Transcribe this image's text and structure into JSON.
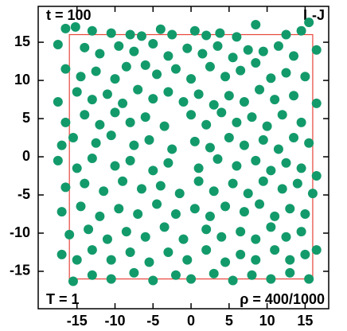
{
  "chart_data": {
    "type": "scatter",
    "annotations": [
      "t = 100",
      "L-J",
      "T = 1",
      "ρ = 400/1000"
    ],
    "color": "#139a6b",
    "box_color": "#e8453c",
    "box_lim": [
      -16,
      16
    ],
    "xlim": [
      -20.1,
      18.1
    ],
    "ylim": [
      -19.9,
      19.7
    ],
    "xticks": [
      -15,
      -10,
      -5,
      0,
      5,
      10,
      15
    ],
    "yticks": [
      -15,
      -10,
      -5,
      0,
      5,
      10,
      15
    ],
    "x": [
      -16.5,
      -15.2,
      -13,
      -10.5,
      -8,
      -6.5,
      -4,
      -2.5,
      0.5,
      2,
      3.8,
      6,
      8.5,
      12.5,
      14.5,
      15.5,
      -17.5,
      -14,
      -12,
      -9.5,
      -7.5,
      -5,
      -3,
      -0.5,
      1.5,
      3.5,
      5.5,
      7.5,
      9.5,
      11.5,
      13.5,
      16.5,
      -16.5,
      -14.5,
      -12.5,
      -10,
      -8.5,
      -6,
      -4.5,
      -2,
      0,
      2.5,
      4.5,
      6.5,
      8.5,
      10.5,
      12.5,
      15,
      -17.5,
      -15,
      -13,
      -11,
      -9,
      -7,
      -5,
      -3,
      -1,
      1,
      3,
      5,
      7,
      9,
      11,
      13.5,
      16.5,
      -16.5,
      -14,
      -12,
      -10,
      -8,
      -6,
      -3.5,
      0,
      2,
      4,
      6,
      8,
      10,
      12,
      14.5,
      -17,
      -15.5,
      -12.5,
      -10.5,
      -7.5,
      -5.5,
      -2.5,
      0.5,
      2.5,
      5,
      7,
      9.5,
      11.5,
      13.5,
      15.5,
      -17.5,
      -15,
      -13,
      -10,
      -8,
      -5,
      -3,
      1,
      3.5,
      6,
      8.5,
      10.5,
      12.5,
      14.5,
      16.5,
      -16.5,
      -14,
      -11.5,
      -9,
      -6.5,
      -4,
      -1.5,
      1,
      3,
      5.5,
      7.5,
      9.5,
      12,
      14,
      16,
      -17,
      -14.5,
      -12,
      -9.5,
      -7,
      -4.5,
      -2,
      0.5,
      2.5,
      4.5,
      7,
      9,
      11,
      13,
      15,
      -16,
      -13.5,
      -11,
      -8.5,
      -6,
      -3.5,
      -1,
      2,
      4,
      6.5,
      8.5,
      10.5,
      12.5,
      14.5,
      16.5,
      -17,
      -15,
      -13,
      -10.5,
      -8,
      -5.5,
      -3,
      -0.5,
      2,
      4.5,
      6.5,
      8.5,
      11,
      13,
      15,
      -15.5,
      -13,
      -10.5,
      -7.5,
      -5,
      -2,
      0,
      3,
      5.5,
      8,
      10.5,
      13,
      15.5
    ],
    "values": [
      16.8,
      17,
      16.5,
      16.2,
      16,
      15.8,
      16.7,
      16,
      16.5,
      15.9,
      16.2,
      15.7,
      17.3,
      16,
      16.5,
      17.6,
      14.7,
      14.3,
      13.5,
      14.5,
      13.8,
      14.8,
      13.2,
      14.2,
      13.5,
      14.5,
      13,
      14,
      13.8,
      14.5,
      13.2,
      14,
      11.5,
      10.5,
      11.2,
      10.2,
      11.8,
      12,
      10.8,
      11.5,
      10.2,
      11.8,
      10.5,
      11.3,
      12.3,
      10.3,
      11,
      10.5,
      7.2,
      8.5,
      7.5,
      8.2,
      7,
      8.8,
      7.6,
      8.5,
      7.2,
      8.2,
      6.8,
      8,
      7.2,
      8.8,
      7.5,
      8,
      7,
      4.5,
      5.5,
      4.2,
      5.8,
      4.5,
      5.2,
      4,
      5.5,
      4.2,
      5.8,
      4.5,
      5.2,
      4,
      5.5,
      4.5,
      1.5,
      2.5,
      1.8,
      2.8,
      1.5,
      2.2,
      1,
      2,
      1.2,
      2.5,
      1.5,
      2.2,
      1,
      2.5,
      1.8,
      -0.5,
      -1.5,
      -0.2,
      -1.2,
      -0.5,
      -1.8,
      -0.8,
      -1.5,
      -0.3,
      -1.2,
      -0.5,
      -1.8,
      -0.8,
      -1.5,
      -2.5,
      -4,
      -3.5,
      -4.5,
      -3.2,
      -4.2,
      -3.8,
      -4.8,
      -3.2,
      -4.5,
      -3.5,
      -4.8,
      -3.2,
      -4.2,
      -3.5,
      -4.8,
      -7.2,
      -6.5,
      -7.8,
      -6.8,
      -7.5,
      -6.2,
      -7.5,
      -6.8,
      -7.8,
      -6.5,
      -7.2,
      -6.2,
      -7.8,
      -6.8,
      -7.5,
      -10.2,
      -9.5,
      -10.8,
      -9.8,
      -10.5,
      -9.2,
      -10.8,
      -9.5,
      -10.5,
      -9.8,
      -10.8,
      -9.2,
      -10.5,
      -9.8,
      -12.2,
      -12.8,
      -13.5,
      -12.2,
      -13.5,
      -12.5,
      -13.8,
      -12.5,
      -13.5,
      -12.2,
      -13.8,
      -12.8,
      -13.5,
      -12.2,
      -13.5,
      -12.8,
      -16.3,
      -15.5,
      -16,
      -15.2,
      -16.2,
      -15.5,
      -16,
      -15.3,
      -16.2,
      -15.5,
      -16,
      -15.2,
      -16
    ]
  }
}
